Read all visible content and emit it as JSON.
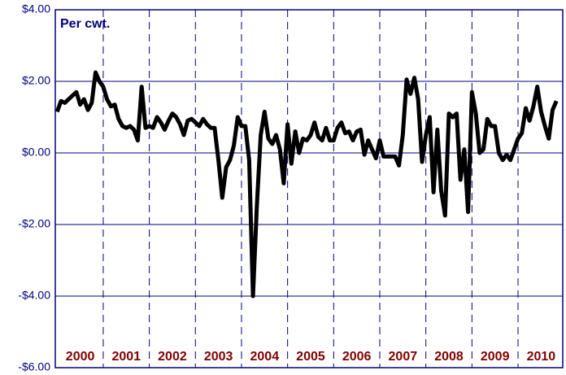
{
  "chart_data": {
    "type": "line",
    "title": "Per cwt.",
    "x": [
      2000,
      2000.083,
      2000.167,
      2000.25,
      2000.333,
      2000.417,
      2000.5,
      2000.583,
      2000.667,
      2000.75,
      2000.833,
      2000.917,
      2001,
      2001.083,
      2001.167,
      2001.25,
      2001.333,
      2001.417,
      2001.5,
      2001.583,
      2001.667,
      2001.75,
      2001.833,
      2001.917,
      2002,
      2002.083,
      2002.167,
      2002.25,
      2002.333,
      2002.417,
      2002.5,
      2002.583,
      2002.667,
      2002.75,
      2002.833,
      2002.917,
      2003,
      2003.083,
      2003.167,
      2003.25,
      2003.333,
      2003.417,
      2003.5,
      2003.583,
      2003.667,
      2003.75,
      2003.833,
      2003.917,
      2004,
      2004.083,
      2004.167,
      2004.25,
      2004.333,
      2004.417,
      2004.5,
      2004.583,
      2004.667,
      2004.75,
      2004.833,
      2004.917,
      2005,
      2005.083,
      2005.167,
      2005.25,
      2005.333,
      2005.417,
      2005.5,
      2005.583,
      2005.667,
      2005.75,
      2005.833,
      2005.917,
      2006,
      2006.083,
      2006.167,
      2006.25,
      2006.333,
      2006.417,
      2006.5,
      2006.583,
      2006.667,
      2006.75,
      2006.833,
      2006.917,
      2007,
      2007.083,
      2007.167,
      2007.25,
      2007.333,
      2007.417,
      2007.5,
      2007.583,
      2007.667,
      2007.75,
      2007.833,
      2007.917,
      2008,
      2008.083,
      2008.167,
      2008.25,
      2008.333,
      2008.417,
      2008.5,
      2008.583,
      2008.667,
      2008.75,
      2008.833,
      2008.917,
      2009,
      2009.083,
      2009.167,
      2009.25,
      2009.333,
      2009.417,
      2009.5,
      2009.583,
      2009.667,
      2009.75,
      2009.833,
      2009.917,
      2010,
      2010.083,
      2010.167,
      2010.25,
      2010.333,
      2010.417,
      2010.5,
      2010.583,
      2010.667,
      2010.75,
      2010.833
    ],
    "values": [
      1.15,
      1.45,
      1.4,
      1.5,
      1.6,
      1.7,
      1.35,
      1.5,
      1.2,
      1.4,
      2.25,
      2.0,
      1.85,
      1.5,
      1.3,
      1.35,
      0.95,
      0.75,
      0.7,
      0.75,
      0.65,
      0.35,
      1.85,
      0.7,
      0.75,
      0.7,
      1.0,
      0.85,
      0.65,
      0.9,
      1.1,
      1.0,
      0.8,
      0.5,
      0.9,
      0.95,
      0.85,
      0.75,
      0.95,
      0.8,
      0.7,
      0.7,
      -0.2,
      -1.25,
      -0.4,
      -0.2,
      0.2,
      1.0,
      0.75,
      0.75,
      -0.2,
      -4.0,
      -1.5,
      0.5,
      1.15,
      0.4,
      0.25,
      0.5,
      0.1,
      -0.85,
      0.8,
      -0.3,
      0.6,
      0.0,
      0.4,
      0.35,
      0.5,
      0.85,
      0.45,
      0.35,
      0.7,
      0.35,
      0.35,
      0.7,
      0.85,
      0.55,
      0.6,
      0.35,
      0.6,
      0.65,
      -0.05,
      0.35,
      0.1,
      -0.15,
      0.35,
      -0.1,
      -0.1,
      -0.1,
      -0.1,
      -0.35,
      0.5,
      2.05,
      1.65,
      2.1,
      1.5,
      -0.25,
      0.5,
      1.0,
      -1.1,
      0.65,
      -1.05,
      -1.75,
      1.1,
      1.0,
      1.1,
      -0.75,
      0.1,
      -1.65,
      1.7,
      1.1,
      0.0,
      0.1,
      0.95,
      0.75,
      0.75,
      0.0,
      -0.2,
      -0.05,
      -0.2,
      0.1,
      0.4,
      0.55,
      1.25,
      0.9,
      1.3,
      1.85,
      1.15,
      0.75,
      0.4,
      1.2,
      1.45
    ],
    "color": "#000000",
    "xlim": [
      1999.96,
      2010.97
    ],
    "xticks": [
      {
        "value": 2000.5,
        "label": "2000"
      },
      {
        "value": 2001.5,
        "label": "2001"
      },
      {
        "value": 2002.5,
        "label": "2002"
      },
      {
        "value": 2003.5,
        "label": "2003"
      },
      {
        "value": 2004.5,
        "label": "2004"
      },
      {
        "value": 2005.5,
        "label": "2005"
      },
      {
        "value": 2006.5,
        "label": "2006"
      },
      {
        "value": 2007.5,
        "label": "2007"
      },
      {
        "value": 2008.5,
        "label": "2008"
      },
      {
        "value": 2009.5,
        "label": "2009"
      },
      {
        "value": 2010.5,
        "label": "2010"
      }
    ],
    "xgrid": [
      2001,
      2002,
      2003,
      2004,
      2005,
      2006,
      2007,
      2008,
      2009,
      2010
    ],
    "ylim": [
      -6,
      4
    ],
    "yticks": [
      {
        "value": 4,
        "label": "$4.00"
      },
      {
        "value": 2,
        "label": "$2.00"
      },
      {
        "value": 0,
        "label": "$0.00"
      },
      {
        "value": -2,
        "label": "-$2.00"
      },
      {
        "value": -4,
        "label": "-$4.00"
      },
      {
        "value": -6,
        "label": "-$6.00"
      }
    ],
    "grid": true
  }
}
